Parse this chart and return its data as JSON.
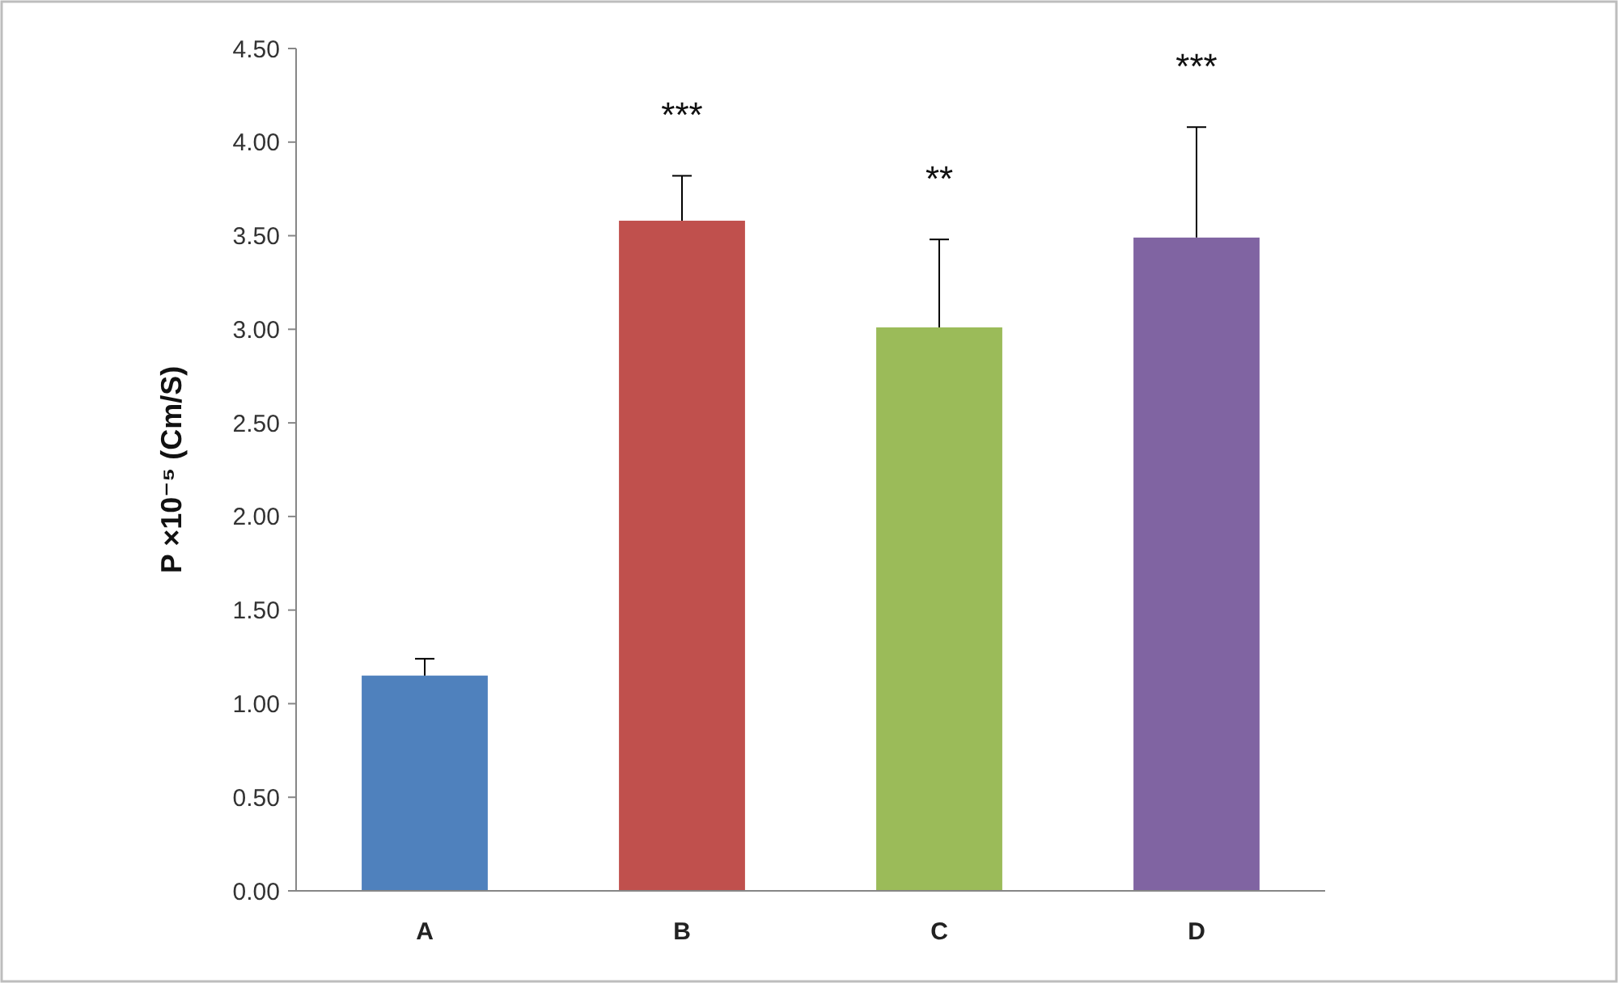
{
  "chart_data": {
    "type": "bar",
    "ylabel": "P ×10⁻⁵ (Cm/S)",
    "categories": [
      "A",
      "B",
      "C",
      "D"
    ],
    "values": [
      1.15,
      3.58,
      3.01,
      3.49
    ],
    "colors": [
      "#4f81bd",
      "#c0504d",
      "#9bbb59",
      "#8064a2"
    ],
    "errors": [
      [
        1.15,
        1.24
      ],
      [
        3.58,
        3.82
      ],
      [
        3.01,
        3.48
      ],
      [
        3.49,
        4.08
      ]
    ],
    "ylim": [
      0,
      4.5
    ],
    "yticks": [
      {
        "value": 0,
        "label": "0.00"
      },
      {
        "value": 0.5,
        "label": "0.50"
      },
      {
        "value": 1,
        "label": "1.00"
      },
      {
        "value": 1.5,
        "label": "1.50"
      },
      {
        "value": 2,
        "label": "2.00"
      },
      {
        "value": 2.5,
        "label": "2.50"
      },
      {
        "value": 3,
        "label": "3.00"
      },
      {
        "value": 3.5,
        "label": "3.50"
      },
      {
        "value": 4,
        "label": "4.00"
      },
      {
        "value": 4.5,
        "label": "4.50"
      }
    ],
    "annotations": [
      {
        "text": "***",
        "x": "B",
        "y": 3.82
      },
      {
        "text": "**",
        "x": "C",
        "y": 3.48
      },
      {
        "text": "***",
        "x": "D",
        "y": 4.08
      }
    ],
    "grid": false
  }
}
